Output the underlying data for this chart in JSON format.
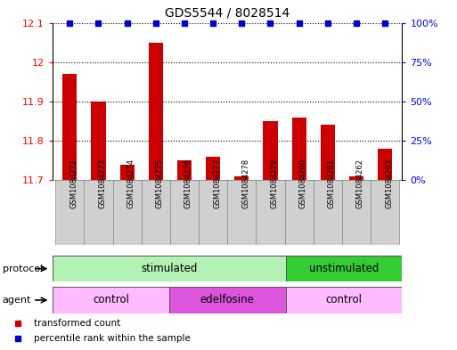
{
  "title": "GDS5544 / 8028514",
  "samples": [
    "GSM1084272",
    "GSM1084273",
    "GSM1084274",
    "GSM1084275",
    "GSM1084276",
    "GSM1084277",
    "GSM1084278",
    "GSM1084279",
    "GSM1084260",
    "GSM1084261",
    "GSM1084262",
    "GSM1084263"
  ],
  "bar_values": [
    11.97,
    11.9,
    11.74,
    12.05,
    11.75,
    11.76,
    11.71,
    11.85,
    11.86,
    11.84,
    11.71,
    11.78
  ],
  "percentile_values": [
    100,
    100,
    100,
    100,
    100,
    100,
    100,
    100,
    100,
    100,
    100,
    100
  ],
  "bar_color": "#cc0000",
  "dot_color": "#0000cc",
  "ylim_left": [
    11.7,
    12.1
  ],
  "ylim_right": [
    0,
    100
  ],
  "yticks_left": [
    11.7,
    11.8,
    11.9,
    12.0,
    12.1
  ],
  "ytick_labels_left": [
    "11.7",
    "11.8",
    "11.9",
    "12",
    "12.1"
  ],
  "yticks_right": [
    0,
    25,
    50,
    75,
    100
  ],
  "ytick_labels_right": [
    "0%",
    "25%",
    "50%",
    "75%",
    "100%"
  ],
  "grid_values": [
    11.8,
    11.9,
    12.0,
    12.1
  ],
  "protocol_groups": [
    {
      "label": "stimulated",
      "start": 0,
      "end": 8,
      "color": "#b3f0b3"
    },
    {
      "label": "unstimulated",
      "start": 8,
      "end": 12,
      "color": "#33cc33"
    }
  ],
  "agent_groups": [
    {
      "label": "control",
      "start": 0,
      "end": 4,
      "color": "#ffbbff"
    },
    {
      "label": "edelfosine",
      "start": 4,
      "end": 8,
      "color": "#dd55dd"
    },
    {
      "label": "control",
      "start": 8,
      "end": 12,
      "color": "#ffbbff"
    }
  ],
  "legend_items": [
    {
      "label": "transformed count",
      "color": "#cc0000"
    },
    {
      "label": "percentile rank within the sample",
      "color": "#0000cc"
    }
  ],
  "protocol_label": "protocol",
  "agent_label": "agent",
  "bar_width": 0.5,
  "sample_box_color": "#d0d0d0",
  "sample_box_edge_color": "#888888"
}
